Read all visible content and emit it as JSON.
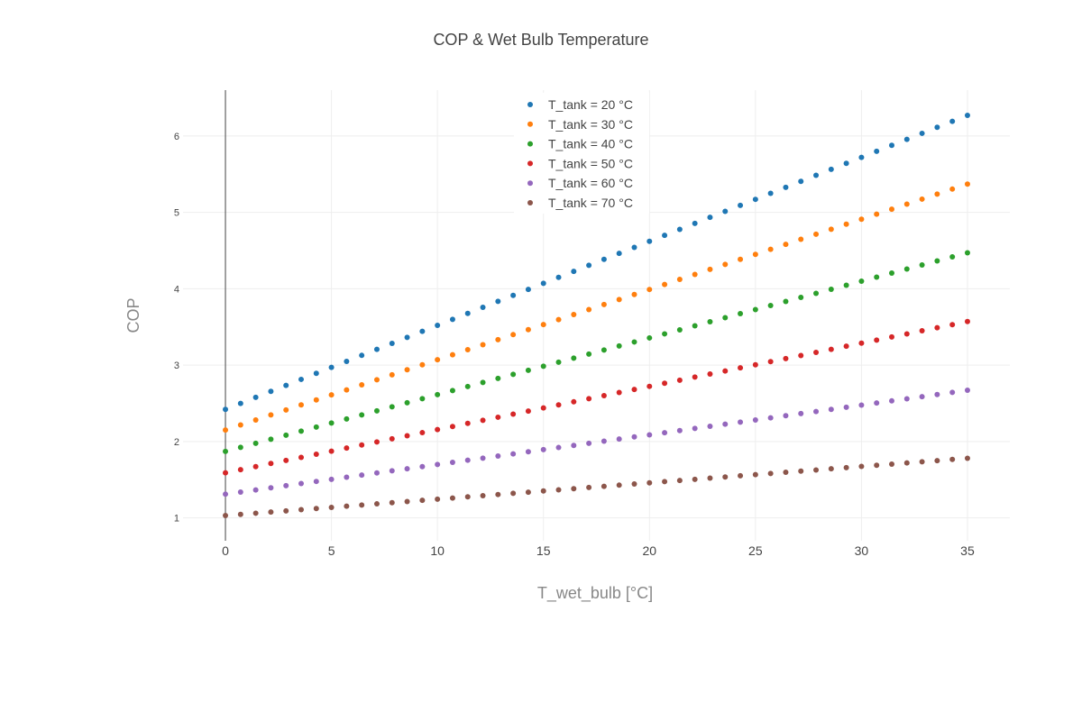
{
  "chart_data": {
    "type": "scatter",
    "title": "COP & Wet Bulb Temperature",
    "xlabel": "T_wet_bulb [°C]",
    "ylabel": "COP",
    "xlim": [
      -2.0,
      37.0
    ],
    "ylim": [
      0.7,
      6.6
    ],
    "x_ticks": [
      0,
      5,
      10,
      15,
      20,
      25,
      30,
      35
    ],
    "y_ticks": [
      1,
      2,
      3,
      4,
      5,
      6
    ],
    "grid": true,
    "legend_position": "top-right",
    "x_start": 0,
    "x_end": 35,
    "points_per_series": 50,
    "series": [
      {
        "name": "T_tank = 20 °C",
        "color": "#1f77b4",
        "y_start": 2.42,
        "y_end": 6.27
      },
      {
        "name": "T_tank = 30 °C",
        "color": "#ff7f0e",
        "y_start": 2.15,
        "y_end": 5.37
      },
      {
        "name": "T_tank = 40 °C",
        "color": "#2ca02c",
        "y_start": 1.87,
        "y_end": 4.47
      },
      {
        "name": "T_tank = 50 °C",
        "color": "#d62728",
        "y_start": 1.59,
        "y_end": 3.57
      },
      {
        "name": "T_tank = 60 °C",
        "color": "#9467bd",
        "y_start": 1.31,
        "y_end": 2.67
      },
      {
        "name": "T_tank = 70 °C",
        "color": "#8c564b",
        "y_start": 1.03,
        "y_end": 1.78
      }
    ]
  }
}
